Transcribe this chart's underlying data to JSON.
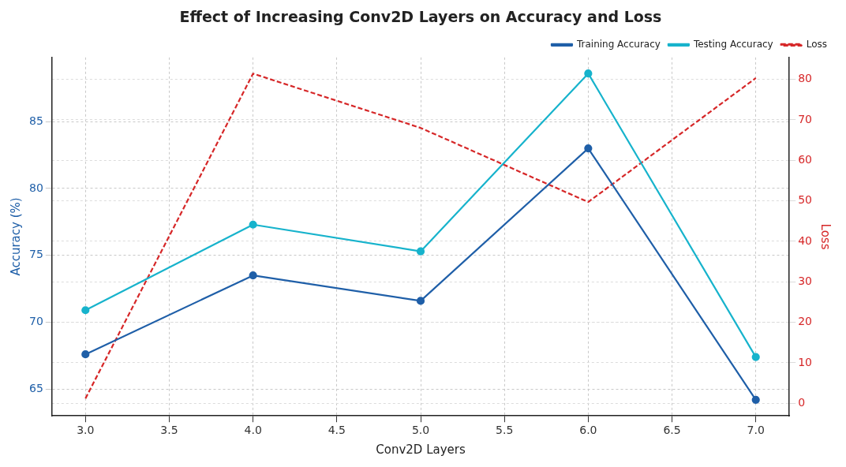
{
  "chart_data": {
    "type": "line",
    "title": "Effect of Increasing Conv2D Layers on Accuracy and Loss",
    "xlabel": "Conv2D Layers",
    "ylabel": "Accuracy (%)",
    "y2label": "Loss",
    "x": [
      3,
      4,
      5,
      6,
      7
    ],
    "series": [
      {
        "name": "Training Accuracy",
        "color": "#1f5fa8",
        "values": [
          67.6,
          73.5,
          71.6,
          83.0,
          64.2
        ],
        "marker": "circle",
        "line_style": "solid"
      },
      {
        "name": "Testing Accuracy",
        "color": "#17b3cc",
        "values": [
          70.9,
          77.3,
          75.3,
          88.6,
          67.4
        ],
        "marker": "circle",
        "line_style": "solid"
      },
      {
        "name": "Loss",
        "color": "#d62728",
        "values": [
          1.2,
          81.4,
          68,
          49.7,
          80.3
        ],
        "axis": "y2",
        "marker": "none",
        "line_style": "dashed"
      }
    ],
    "xlim": [
      2.8,
      7.2
    ],
    "xticks": [
      {
        "value": 3,
        "label": "3.0"
      },
      {
        "value": 3.5,
        "label": "3.5"
      },
      {
        "value": 4,
        "label": "4.0"
      },
      {
        "value": 4.5,
        "label": "4.5"
      },
      {
        "value": 5,
        "label": "5.0"
      },
      {
        "value": 5.5,
        "label": "5.5"
      },
      {
        "value": 6,
        "label": "6.0"
      },
      {
        "value": 6.5,
        "label": "6.5"
      },
      {
        "value": 7,
        "label": "7.0"
      }
    ],
    "ylim": [
      63,
      89.8
    ],
    "yticks": [
      65,
      70,
      75,
      80,
      85
    ],
    "y2lim": [
      -3.1,
      85.4
    ],
    "y2ticks": [
      0,
      10,
      20,
      30,
      40,
      50,
      60,
      70,
      80
    ],
    "grid": true,
    "legend": "top right"
  }
}
